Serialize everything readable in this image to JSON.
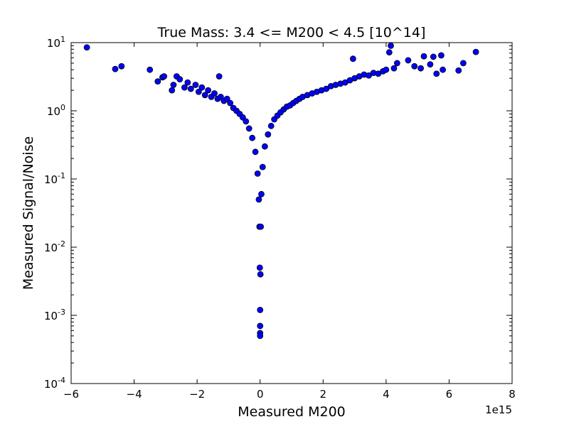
{
  "chart_data": {
    "type": "scatter",
    "title": "True Mass: 3.4 <= M200 < 4.5  [10^14]",
    "xlabel": "Measured M200",
    "ylabel": "Measured Signal/Noise",
    "x_offset_label": "1e15",
    "xlim": [
      -6000000000000000.0,
      8000000000000000.0
    ],
    "ylim": [
      0.0001,
      10
    ],
    "yscale": "log",
    "xticks": [
      {
        "value": -6000000000000000.0,
        "label": "−6"
      },
      {
        "value": -4000000000000000.0,
        "label": "−4"
      },
      {
        "value": -2000000000000000.0,
        "label": "−2"
      },
      {
        "value": 0,
        "label": "0"
      },
      {
        "value": 2000000000000000.0,
        "label": "2"
      },
      {
        "value": 4000000000000000.0,
        "label": "4"
      },
      {
        "value": 6000000000000000.0,
        "label": "6"
      },
      {
        "value": 8000000000000000.0,
        "label": "8"
      }
    ],
    "yticks": [
      {
        "value": 10,
        "base": "10",
        "exp": "1"
      },
      {
        "value": 1,
        "base": "10",
        "exp": "0"
      },
      {
        "value": 0.1,
        "base": "10",
        "exp": "-1"
      },
      {
        "value": 0.01,
        "base": "10",
        "exp": "-2"
      },
      {
        "value": 0.001,
        "base": "10",
        "exp": "-3"
      },
      {
        "value": 0.0001,
        "base": "10",
        "exp": "-4"
      }
    ],
    "grid": false,
    "marker_color": "#0000ff",
    "marker_edge": "#000000",
    "series": [
      {
        "points": [
          [
            -5500000000000000.0,
            8.5
          ],
          [
            -4600000000000000.0,
            4.1
          ],
          [
            -4400000000000000.0,
            4.5
          ],
          [
            -3500000000000000.0,
            4.0
          ],
          [
            -3250000000000000.0,
            2.7
          ],
          [
            -3100000000000000.0,
            3.1
          ],
          [
            -3050000000000000.0,
            3.2
          ],
          [
            -2800000000000000.0,
            2.0
          ],
          [
            -2750000000000000.0,
            2.4
          ],
          [
            -2650000000000000.0,
            3.2
          ],
          [
            -2550000000000000.0,
            2.9
          ],
          [
            -2400000000000000.0,
            2.2
          ],
          [
            -2300000000000000.0,
            2.6
          ],
          [
            -2200000000000000.0,
            2.1
          ],
          [
            -2050000000000000.0,
            2.4
          ],
          [
            -1950000000000000.0,
            1.9
          ],
          [
            -1850000000000000.0,
            2.2
          ],
          [
            -1750000000000000.0,
            1.7
          ],
          [
            -1650000000000000.0,
            2.0
          ],
          [
            -1550000000000000.0,
            1.6
          ],
          [
            -1450000000000000.0,
            1.8
          ],
          [
            -1350000000000000.0,
            1.5
          ],
          [
            -1300000000000000.0,
            3.2
          ],
          [
            -1250000000000000.0,
            1.6
          ],
          [
            -1150000000000000.0,
            1.4
          ],
          [
            -1050000000000000.0,
            1.5
          ],
          [
            -950000000000000.0,
            1.3
          ],
          [
            -850000000000000.0,
            1.1
          ],
          [
            -750000000000000.0,
            1.0
          ],
          [
            -650000000000000.0,
            0.9
          ],
          [
            -550000000000000.0,
            0.8
          ],
          [
            -450000000000000.0,
            0.7
          ],
          [
            -350000000000000.0,
            0.55
          ],
          [
            -250000000000000.0,
            0.4
          ],
          [
            -150000000000000.0,
            0.25
          ],
          [
            -80000000000000.0,
            0.12
          ],
          [
            -40000000000000.0,
            0.05
          ],
          [
            -20000000000000.0,
            0.02
          ],
          [
            -10000000000000.0,
            0.005
          ],
          [
            0.0,
            0.0012
          ],
          [
            0.0,
            0.0007
          ],
          [
            0.0,
            0.00055
          ],
          [
            0.0,
            0.0005
          ],
          [
            10000000000000.0,
            0.004
          ],
          [
            20000000000000.0,
            0.02
          ],
          [
            40000000000000.0,
            0.06
          ],
          [
            80000000000000.0,
            0.15
          ],
          [
            150000000000000.0,
            0.3
          ],
          [
            250000000000000.0,
            0.45
          ],
          [
            350000000000000.0,
            0.6
          ],
          [
            450000000000000.0,
            0.75
          ],
          [
            550000000000000.0,
            0.85
          ],
          [
            650000000000000.0,
            0.95
          ],
          [
            750000000000000.0,
            1.05
          ],
          [
            850000000000000.0,
            1.15
          ],
          [
            950000000000000.0,
            1.2
          ],
          [
            1050000000000000.0,
            1.3
          ],
          [
            1150000000000000.0,
            1.4
          ],
          [
            1250000000000000.0,
            1.5
          ],
          [
            1350000000000000.0,
            1.6
          ],
          [
            1500000000000000.0,
            1.7
          ],
          [
            1650000000000000.0,
            1.8
          ],
          [
            1800000000000000.0,
            1.9
          ],
          [
            1950000000000000.0,
            2.0
          ],
          [
            2100000000000000.0,
            2.1
          ],
          [
            2250000000000000.0,
            2.3
          ],
          [
            2400000000000000.0,
            2.4
          ],
          [
            2550000000000000.0,
            2.5
          ],
          [
            2700000000000000.0,
            2.6
          ],
          [
            2850000000000000.0,
            2.8
          ],
          [
            2950000000000000.0,
            5.8
          ],
          [
            3000000000000000.0,
            3.0
          ],
          [
            3150000000000000.0,
            3.2
          ],
          [
            3300000000000000.0,
            3.4
          ],
          [
            3450000000000000.0,
            3.3
          ],
          [
            3600000000000000.0,
            3.6
          ],
          [
            3750000000000000.0,
            3.5
          ],
          [
            3900000000000000.0,
            3.8
          ],
          [
            4000000000000000.0,
            4.0
          ],
          [
            4100000000000000.0,
            7.2
          ],
          [
            4150000000000000.0,
            9.0
          ],
          [
            4250000000000000.0,
            4.2
          ],
          [
            4350000000000000.0,
            5.0
          ],
          [
            4700000000000000.0,
            5.5
          ],
          [
            4900000000000000.0,
            4.5
          ],
          [
            5100000000000000.0,
            4.2
          ],
          [
            5200000000000000.0,
            6.3
          ],
          [
            5400000000000000.0,
            4.8
          ],
          [
            5500000000000000.0,
            6.2
          ],
          [
            5600000000000000.0,
            3.5
          ],
          [
            5750000000000000.0,
            6.5
          ],
          [
            5800000000000000.0,
            4.0
          ],
          [
            6300000000000000.0,
            3.9
          ],
          [
            6450000000000000.0,
            5.0
          ],
          [
            6850000000000000.0,
            7.3
          ]
        ]
      }
    ]
  }
}
